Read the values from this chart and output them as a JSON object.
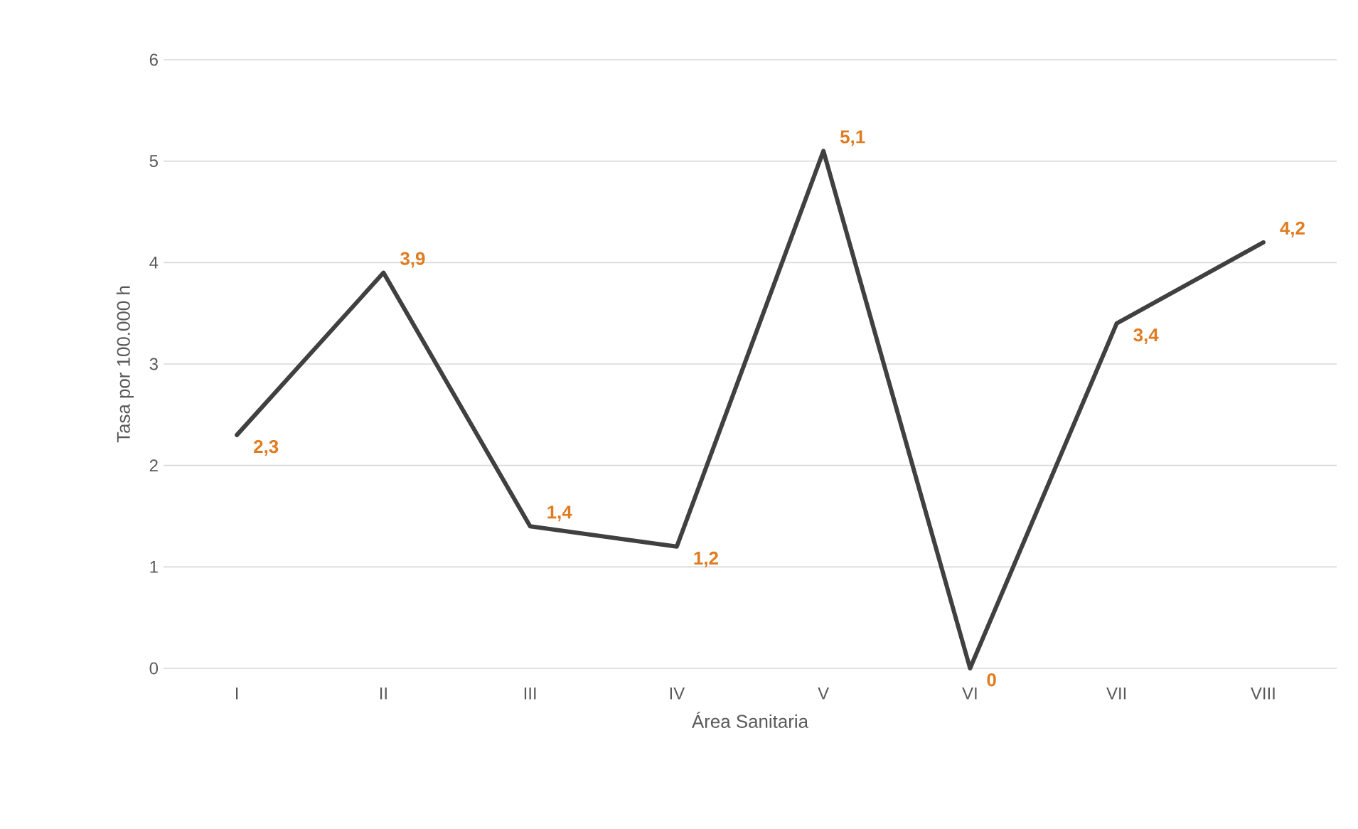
{
  "chart_data": {
    "type": "line",
    "xlabel": "Área Sanitaria",
    "ylabel": "Tasa por 100.000 h",
    "categories": [
      "I",
      "II",
      "III",
      "IV",
      "V",
      "VI",
      "VII",
      "VIII"
    ],
    "values": [
      2.3,
      3.9,
      1.4,
      1.2,
      5.1,
      0,
      3.4,
      4.2
    ],
    "value_labels": [
      "2,3",
      "3,9",
      "1,4",
      "1,2",
      "5,1",
      "0",
      "3,4",
      "4,2"
    ],
    "color": "#404040",
    "ylim": [
      0,
      6
    ],
    "yticks": [
      0,
      1,
      2,
      3,
      4,
      5,
      6
    ],
    "grid": "y",
    "marker": "none",
    "line_style": "solid"
  }
}
